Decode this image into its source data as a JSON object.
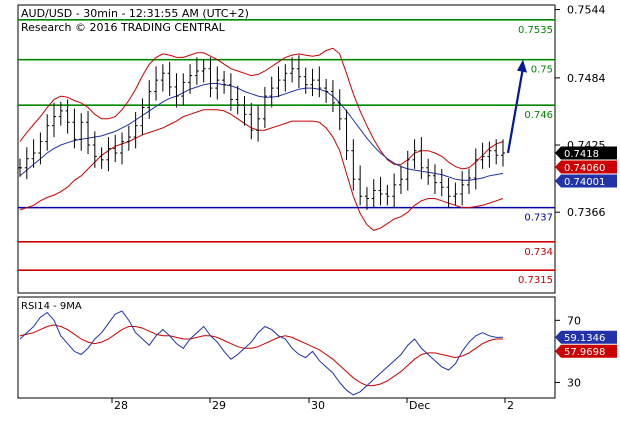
{
  "header": {
    "title": "AUD/USD - 30min - 12:31:55 AM (UTC+2)",
    "copyright": "Research © 2016 TRADING CENTRAL"
  },
  "colors": {
    "price": "#000000",
    "bollinger": "#cc0000",
    "ma": "#2233aa",
    "resistance": "#008800",
    "support_blue": "#0000aa",
    "support_red": "#cc0000",
    "arrow": "#001a99",
    "rsi": "#2233aa",
    "rsi_ma": "#cc0000"
  },
  "chart_data": [
    {
      "type": "line",
      "title": "AUD/USD - 30min - 12:31:55 AM (UTC+2)",
      "y_axis_ticks": [
        "0.7544",
        "0.7484",
        "0.7425",
        "0.7366"
      ],
      "ylim": [
        0.7295,
        0.7548
      ],
      "x_axis_ticks": [
        "28",
        "29",
        "30",
        "Dec",
        "2"
      ],
      "levels": [
        {
          "value": 0.7535,
          "label": "0.7535",
          "color": "#008800"
        },
        {
          "value": 0.75,
          "label": "0.75",
          "color": "#008800"
        },
        {
          "value": 0.746,
          "label": "0.746",
          "color": "#008800"
        },
        {
          "value": 0.737,
          "label": "0.737",
          "color": "#0000aa"
        },
        {
          "value": 0.734,
          "label": "0.734",
          "color": "#cc0000"
        },
        {
          "value": 0.7315,
          "label": "0.7315",
          "color": "#cc0000"
        }
      ],
      "price_labels": [
        {
          "value": 0.7418,
          "label": "0.7418",
          "bg": "#000000"
        },
        {
          "value": 0.7406,
          "label": "0.74060",
          "bg": "#cc0000"
        },
        {
          "value": 0.74001,
          "label": "0.74001",
          "bg": "#2233aa"
        }
      ],
      "series": [
        {
          "name": "price",
          "y": [
            0.7405,
            0.7413,
            0.7418,
            0.7428,
            0.7442,
            0.745,
            0.7455,
            0.7445,
            0.743,
            0.7445,
            0.7425,
            0.7415,
            0.7412,
            0.7422,
            0.7418,
            0.7428,
            0.7432,
            0.7442,
            0.7458,
            0.7472,
            0.7482,
            0.7488,
            0.7476,
            0.7468,
            0.748,
            0.7486,
            0.749,
            0.7492,
            0.7475,
            0.7482,
            0.7478,
            0.7465,
            0.746,
            0.7452,
            0.7438,
            0.7448,
            0.7468,
            0.7475,
            0.7482,
            0.7488,
            0.7492,
            0.7485,
            0.7478,
            0.7482,
            0.7475,
            0.7472,
            0.7462,
            0.7448,
            0.742,
            0.7395,
            0.738,
            0.7378,
            0.7385,
            0.7382,
            0.738,
            0.739,
            0.7395,
            0.7412,
            0.742,
            0.7405,
            0.7398,
            0.7392,
            0.7388,
            0.738,
            0.7382,
            0.739,
            0.7396,
            0.7412,
            0.7415,
            0.742,
            0.7416,
            0.7418
          ]
        },
        {
          "name": "moving average",
          "y": [
            0.7398,
            0.7403,
            0.7408,
            0.7413,
            0.7418,
            0.7422,
            0.7425,
            0.7427,
            0.7429,
            0.743,
            0.7431,
            0.7432,
            0.7433,
            0.7435,
            0.7437,
            0.744,
            0.7443,
            0.7447,
            0.7451,
            0.7455,
            0.7459,
            0.7463,
            0.7466,
            0.7468,
            0.7471,
            0.7474,
            0.7476,
            0.7478,
            0.7479,
            0.7479,
            0.7478,
            0.7477,
            0.7475,
            0.7472,
            0.747,
            0.7468,
            0.7467,
            0.7467,
            0.7468,
            0.747,
            0.7472,
            0.7474,
            0.7475,
            0.7475,
            0.7474,
            0.7472,
            0.7468,
            0.7462,
            0.7455,
            0.7447,
            0.7439,
            0.7431,
            0.7424,
            0.7418,
            0.7413,
            0.7409,
            0.7406,
            0.7404,
            0.7403,
            0.7402,
            0.7401,
            0.74,
            0.7399,
            0.7397,
            0.7395,
            0.7394,
            0.7394,
            0.7395,
            0.7396,
            0.7398,
            0.7399,
            0.74001
          ]
        },
        {
          "name": "bollinger upper",
          "y": [
            0.7428,
            0.7436,
            0.7443,
            0.745,
            0.7458,
            0.7465,
            0.7468,
            0.7467,
            0.7464,
            0.7462,
            0.7458,
            0.7452,
            0.7448,
            0.7448,
            0.745,
            0.7456,
            0.7464,
            0.7474,
            0.7486,
            0.7496,
            0.7502,
            0.7505,
            0.7504,
            0.7502,
            0.7502,
            0.7504,
            0.7506,
            0.7506,
            0.7503,
            0.75,
            0.7496,
            0.7492,
            0.749,
            0.7488,
            0.7486,
            0.7487,
            0.749,
            0.7494,
            0.7498,
            0.7502,
            0.7504,
            0.7505,
            0.7504,
            0.7503,
            0.7504,
            0.7508,
            0.751,
            0.7505,
            0.7488,
            0.747,
            0.7455,
            0.7442,
            0.743,
            0.742,
            0.7412,
            0.7408,
            0.7408,
            0.7412,
            0.7418,
            0.742,
            0.742,
            0.7418,
            0.7415,
            0.741,
            0.7406,
            0.7404,
            0.7405,
            0.741,
            0.7416,
            0.7422,
            0.7426,
            0.7428
          ]
        },
        {
          "name": "bollinger lower",
          "y": [
            0.7368,
            0.737,
            0.7372,
            0.7376,
            0.7379,
            0.7381,
            0.7384,
            0.7388,
            0.7394,
            0.7398,
            0.7404,
            0.741,
            0.7416,
            0.742,
            0.7424,
            0.7426,
            0.7428,
            0.7431,
            0.7434,
            0.7436,
            0.7438,
            0.744,
            0.7443,
            0.7446,
            0.745,
            0.7452,
            0.7454,
            0.7456,
            0.7456,
            0.7456,
            0.7455,
            0.7452,
            0.7448,
            0.7444,
            0.744,
            0.7438,
            0.7438,
            0.744,
            0.7442,
            0.7444,
            0.7446,
            0.7446,
            0.7446,
            0.7446,
            0.7445,
            0.744,
            0.7432,
            0.742,
            0.74,
            0.738,
            0.7365,
            0.7355,
            0.735,
            0.7352,
            0.7356,
            0.736,
            0.7362,
            0.7366,
            0.7372,
            0.7376,
            0.7378,
            0.7378,
            0.7376,
            0.7374,
            0.7372,
            0.737,
            0.737,
            0.7371,
            0.7372,
            0.7374,
            0.7376,
            0.7378
          ]
        }
      ],
      "forecast": {
        "from": 0.7418,
        "to": 0.75
      }
    },
    {
      "type": "line",
      "title": "RSI14 - 9MA",
      "y_axis_ticks": [
        "70",
        "30"
      ],
      "ylim": [
        20,
        85
      ],
      "price_labels": [
        {
          "value": 59.1346,
          "label": "59.1346",
          "bg": "#2233aa"
        },
        {
          "value": 57.9698,
          "label": "57.9698",
          "bg": "#cc0000"
        }
      ],
      "series": [
        {
          "name": "RSI14",
          "y": [
            58,
            62,
            66,
            72,
            75,
            70,
            60,
            55,
            50,
            48,
            52,
            58,
            62,
            68,
            74,
            76,
            70,
            62,
            58,
            54,
            60,
            64,
            60,
            55,
            52,
            58,
            62,
            66,
            60,
            56,
            50,
            45,
            48,
            52,
            56,
            62,
            66,
            64,
            60,
            58,
            52,
            48,
            46,
            50,
            44,
            40,
            36,
            30,
            25,
            22,
            24,
            28,
            32,
            36,
            40,
            44,
            48,
            54,
            58,
            52,
            48,
            44,
            40,
            38,
            42,
            50,
            56,
            60,
            62,
            60,
            59,
            59.1346
          ]
        },
        {
          "name": "9MA",
          "y": [
            60,
            61,
            62,
            64,
            66,
            67,
            66,
            64,
            61,
            58,
            56,
            55,
            56,
            58,
            61,
            64,
            66,
            66,
            65,
            63,
            61,
            60,
            60,
            59,
            58,
            58,
            59,
            60,
            60,
            59,
            57,
            55,
            53,
            52,
            52,
            53,
            55,
            57,
            59,
            60,
            59,
            57,
            55,
            53,
            51,
            48,
            45,
            41,
            37,
            33,
            30,
            28,
            28,
            29,
            31,
            34,
            37,
            41,
            45,
            48,
            49,
            49,
            48,
            47,
            46,
            47,
            49,
            52,
            55,
            57,
            58,
            57.9698
          ]
        }
      ]
    }
  ]
}
